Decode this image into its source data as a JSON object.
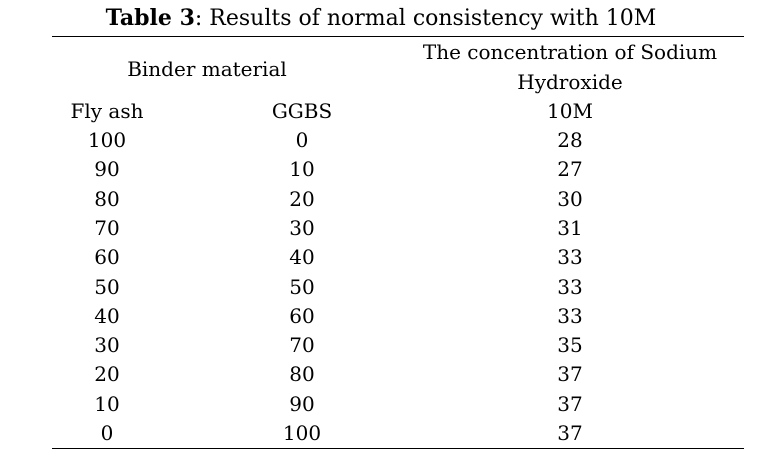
{
  "caption": {
    "label": "Table 3",
    "text": ": Results of normal consistency with 10M"
  },
  "header": {
    "binder_material": "Binder material",
    "concentration_line1": "The concentration of Sodium",
    "concentration_line2": "Hydroxide",
    "fly_ash": "Fly ash",
    "ggbs": "GGBS",
    "molarity": "10M"
  },
  "rows": [
    {
      "fly_ash": "100",
      "ggbs": "0",
      "value": "28"
    },
    {
      "fly_ash": "90",
      "ggbs": "10",
      "value": "27"
    },
    {
      "fly_ash": "80",
      "ggbs": "20",
      "value": "30"
    },
    {
      "fly_ash": "70",
      "ggbs": "30",
      "value": "31"
    },
    {
      "fly_ash": "60",
      "ggbs": "40",
      "value": "33"
    },
    {
      "fly_ash": "50",
      "ggbs": "50",
      "value": "33"
    },
    {
      "fly_ash": "40",
      "ggbs": "60",
      "value": "33"
    },
    {
      "fly_ash": "30",
      "ggbs": "70",
      "value": "35"
    },
    {
      "fly_ash": "20",
      "ggbs": "80",
      "value": "37"
    },
    {
      "fly_ash": "10",
      "ggbs": "90",
      "value": "37"
    },
    {
      "fly_ash": "0",
      "ggbs": "100",
      "value": "37"
    }
  ]
}
